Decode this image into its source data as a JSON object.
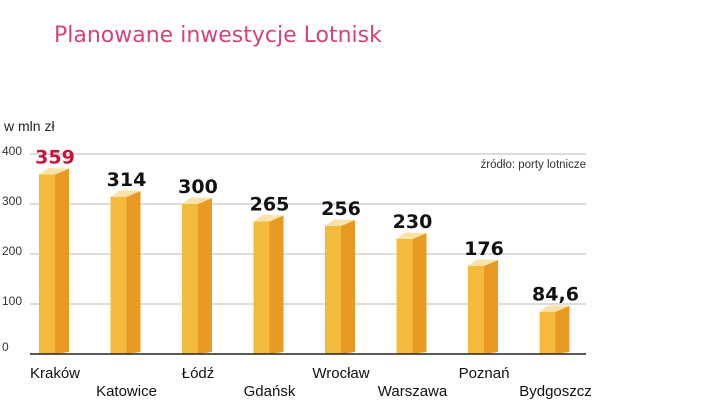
{
  "chart_data": {
    "type": "bar",
    "title": "Planowane inwestycje Lotnisk",
    "unit_label": "w mln zł",
    "source": "źródło: porty lotnicze",
    "categories": [
      "Kraków",
      "Katowice",
      "Łódź",
      "Gdańsk",
      "Wrocław",
      "Warszawa",
      "Poznań",
      "Bydgoszcz"
    ],
    "values": [
      359,
      314,
      300,
      265,
      256,
      230,
      176,
      84.6
    ],
    "value_labels": [
      "359",
      "314",
      "300",
      "265",
      "256",
      "230",
      "176",
      "84,6"
    ],
    "highlight_index": 0,
    "ylim": [
      0,
      400
    ],
    "yticks": [
      0,
      100,
      200,
      300,
      400
    ],
    "grid": true,
    "colors": {
      "bar_front": "#f3ba3c",
      "bar_side": "#e89a22",
      "bar_top": "#fbe2a6",
      "title": "#d6427a",
      "highlight": "#c8143c"
    }
  }
}
